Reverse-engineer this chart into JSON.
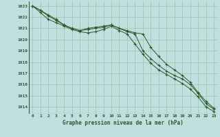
{
  "background_color": "#c0e0e0",
  "grid_color": "#98c4aa",
  "line_color": "#2a5828",
  "title": "Graphe pression niveau de la mer (hPa)",
  "hours": [
    0,
    1,
    2,
    3,
    4,
    5,
    6,
    7,
    8,
    9,
    10,
    11,
    12,
    13,
    14,
    15,
    16,
    17,
    18,
    19,
    20,
    21,
    22,
    23
  ],
  "ylim": [
    1013.4,
    1023.4
  ],
  "yticks": [
    1014,
    1015,
    1016,
    1017,
    1018,
    1019,
    1020,
    1021,
    1022,
    1023
  ],
  "series1": [
    1023.0,
    1022.6,
    1022.2,
    1021.8,
    1021.3,
    1021.0,
    1020.8,
    1021.0,
    1021.1,
    1021.2,
    1021.3,
    1021.0,
    1020.8,
    1020.6,
    1020.5,
    1019.3,
    1018.5,
    1017.8,
    1017.3,
    1016.8,
    1016.2,
    1015.3,
    1014.5,
    1013.9
  ],
  "series2": [
    1023.0,
    1022.6,
    1022.1,
    1021.7,
    1021.3,
    1021.0,
    1020.8,
    1020.9,
    1021.0,
    1021.1,
    1021.3,
    1021.0,
    1020.7,
    1020.5,
    1019.0,
    1018.3,
    1017.7,
    1017.2,
    1016.8,
    1016.5,
    1016.0,
    1015.2,
    1014.3,
    1013.8
  ],
  "series3": [
    1023.0,
    1022.4,
    1021.8,
    1021.5,
    1021.2,
    1020.9,
    1020.7,
    1020.6,
    1020.7,
    1020.9,
    1021.2,
    1020.8,
    1020.5,
    1019.6,
    1018.7,
    1017.9,
    1017.3,
    1016.9,
    1016.5,
    1016.1,
    1015.6,
    1014.9,
    1014.0,
    1013.6
  ]
}
